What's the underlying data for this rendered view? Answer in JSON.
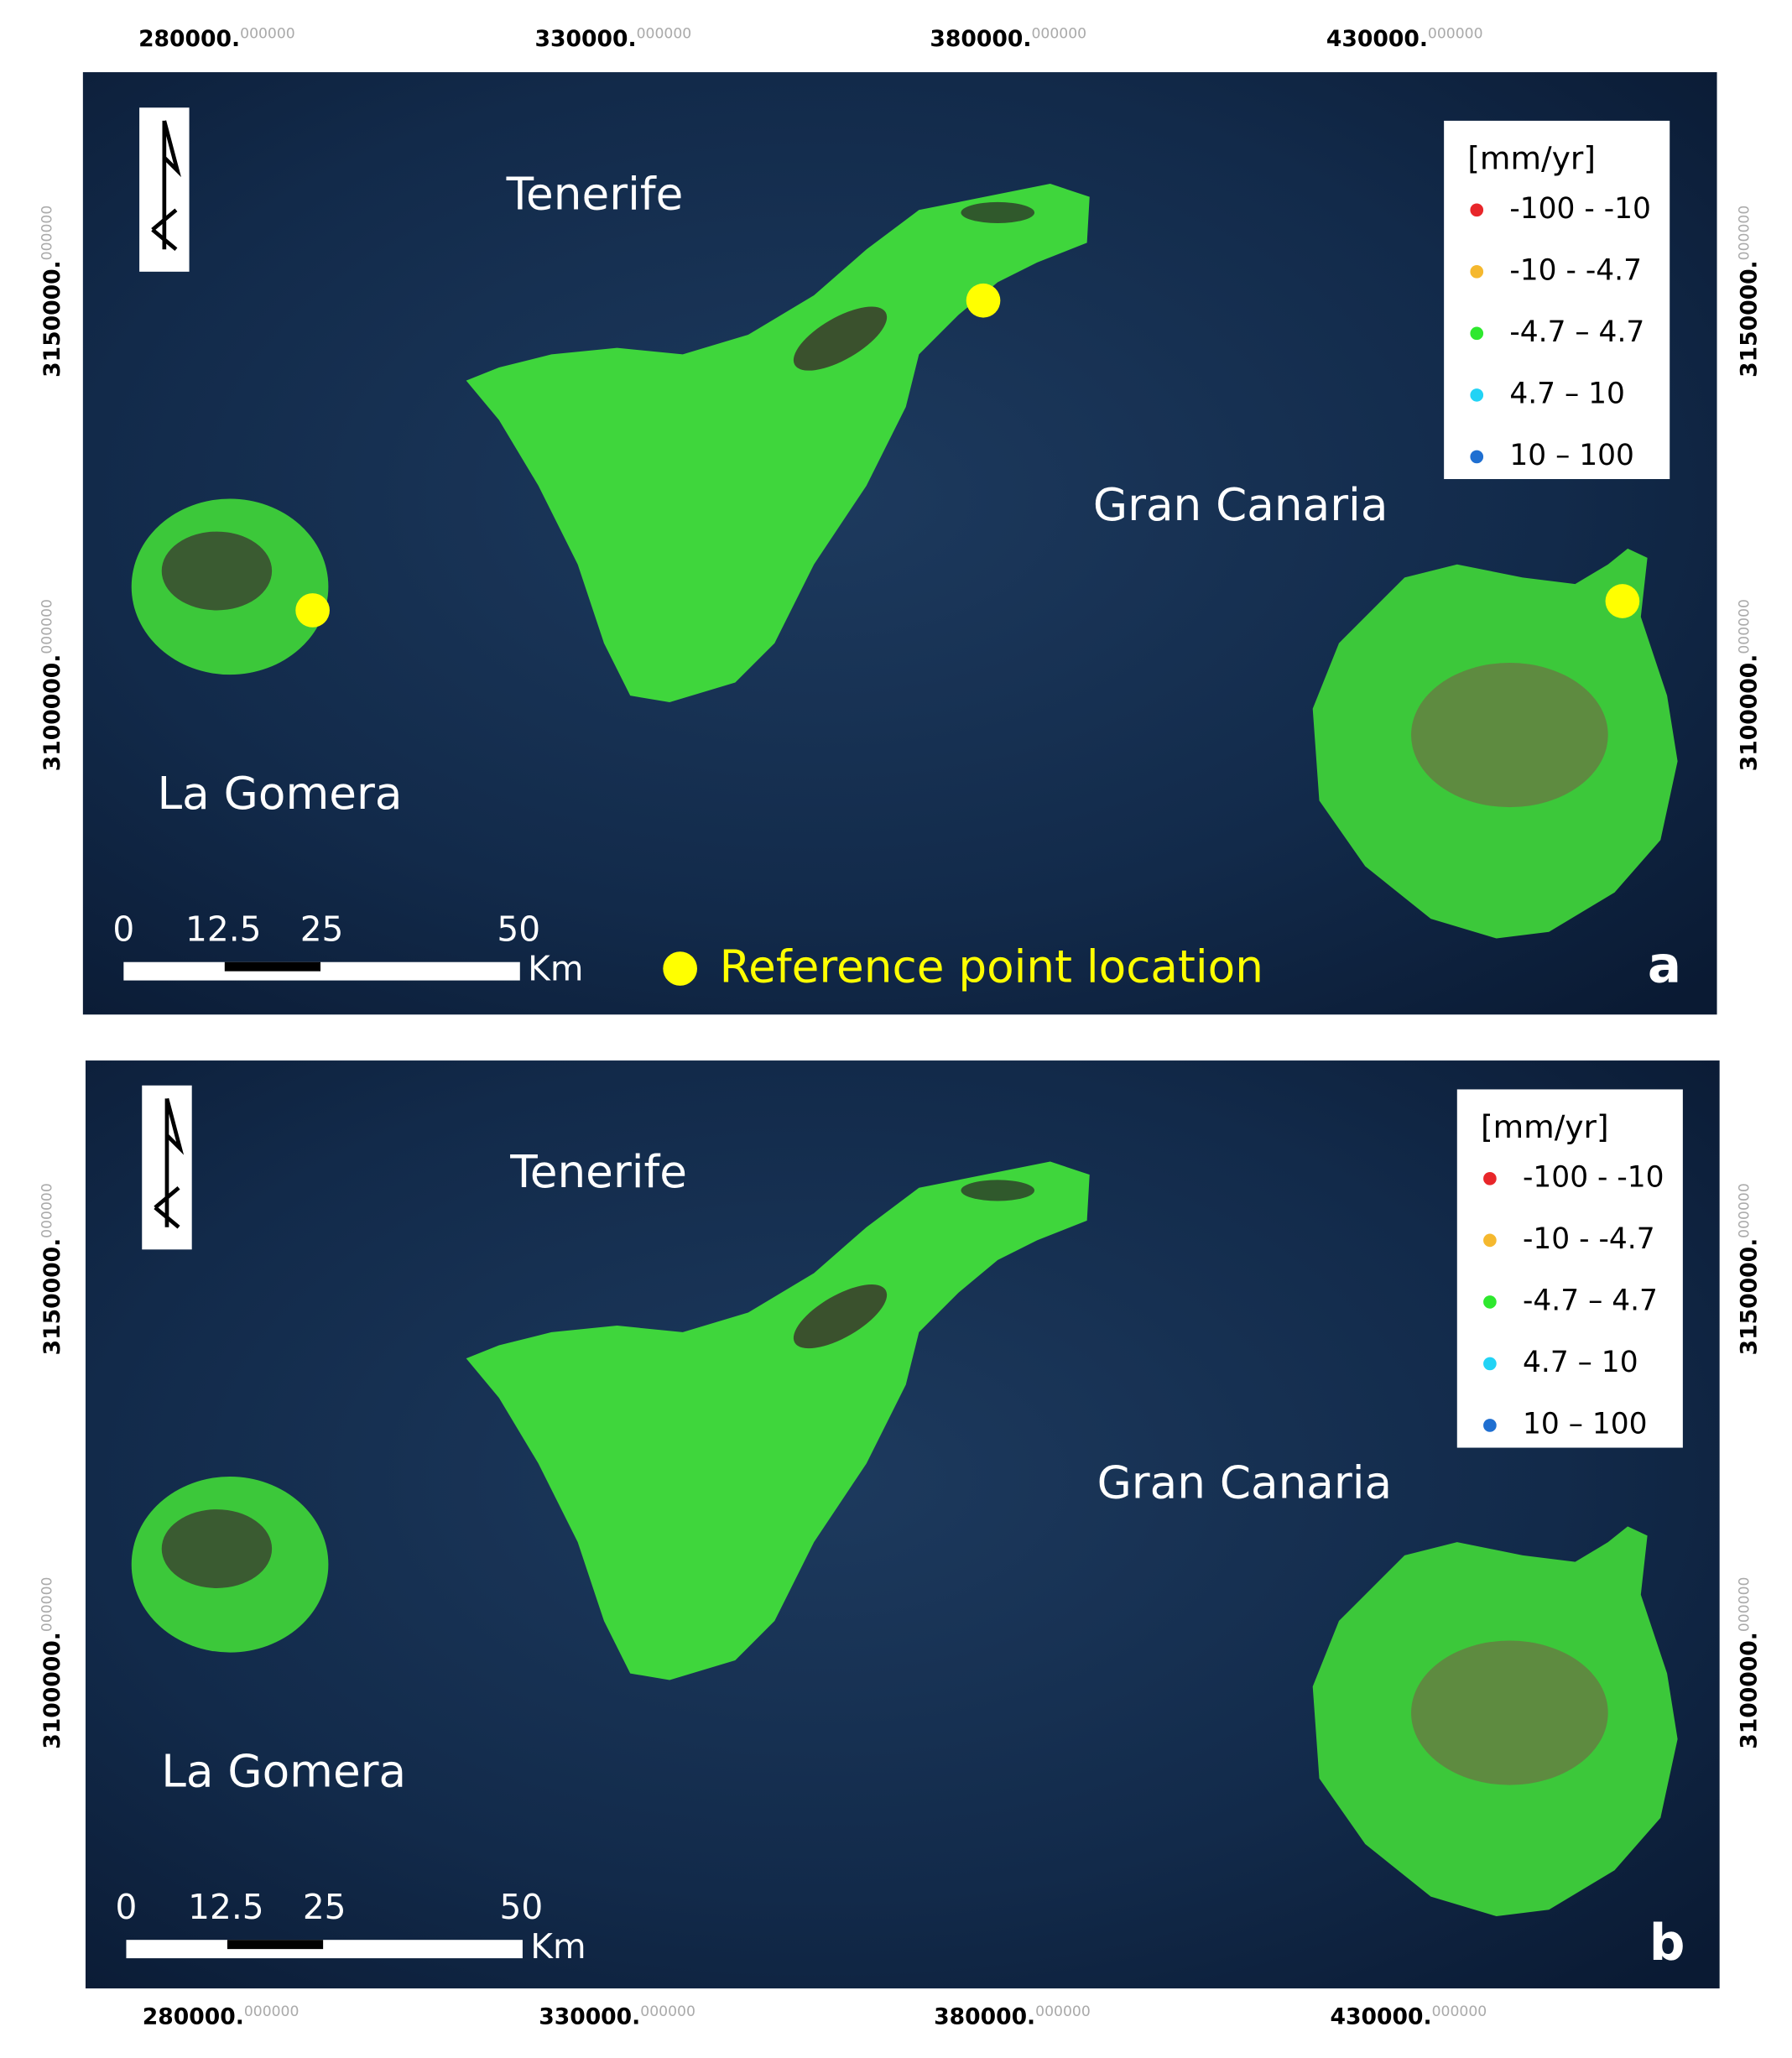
{
  "panels": [
    {
      "letter": "a",
      "x_labels": [
        {
          "main": "280000.",
          "decimals": "000000"
        },
        {
          "main": "330000.",
          "decimals": "000000"
        },
        {
          "main": "380000.",
          "decimals": "000000"
        },
        {
          "main": "430000.",
          "decimals": "000000"
        }
      ],
      "y_labels": [
        {
          "main": "3150000.",
          "decimals": "000000"
        },
        {
          "main": "3100000.",
          "decimals": "000000"
        }
      ],
      "islands": [
        "Tenerife",
        "Gran Canaria",
        "La Gomera"
      ],
      "legend": {
        "title": "[mm/yr]",
        "items": [
          {
            "label": "-100 - -10",
            "color": "#e8262a"
          },
          {
            "label": "-10 - -4.7",
            "color": "#f5b82e"
          },
          {
            "label": "-4.7 – 4.7",
            "color": "#2ee82e"
          },
          {
            "label": "4.7 – 10",
            "color": "#22d3f5"
          },
          {
            "label": "10 – 100",
            "color": "#1f6fd1"
          }
        ]
      },
      "scale": {
        "ticks": [
          "0",
          "12.5",
          "25",
          "50"
        ],
        "unit": "Km"
      },
      "reference": "Reference point location"
    },
    {
      "letter": "b",
      "x_labels": [
        {
          "main": "280000.",
          "decimals": "000000"
        },
        {
          "main": "330000.",
          "decimals": "000000"
        },
        {
          "main": "380000.",
          "decimals": "000000"
        },
        {
          "main": "430000.",
          "decimals": "000000"
        }
      ],
      "y_labels": [
        {
          "main": "3150000.",
          "decimals": "000000"
        },
        {
          "main": "3100000.",
          "decimals": "000000"
        }
      ],
      "islands": [
        "Tenerife",
        "Gran Canaria",
        "La Gomera"
      ],
      "legend": {
        "title": "[mm/yr]",
        "items": [
          {
            "label": "-100 - -10",
            "color": "#e8262a"
          },
          {
            "label": "-10 - -4.7",
            "color": "#f5b82e"
          },
          {
            "label": "-4.7 – 4.7",
            "color": "#2ee82e"
          },
          {
            "label": "4.7 – 10",
            "color": "#22d3f5"
          },
          {
            "label": "10 – 100",
            "color": "#1f6fd1"
          }
        ]
      },
      "scale": {
        "ticks": [
          "0",
          "12.5",
          "25",
          "50"
        ],
        "unit": "Km"
      }
    }
  ]
}
